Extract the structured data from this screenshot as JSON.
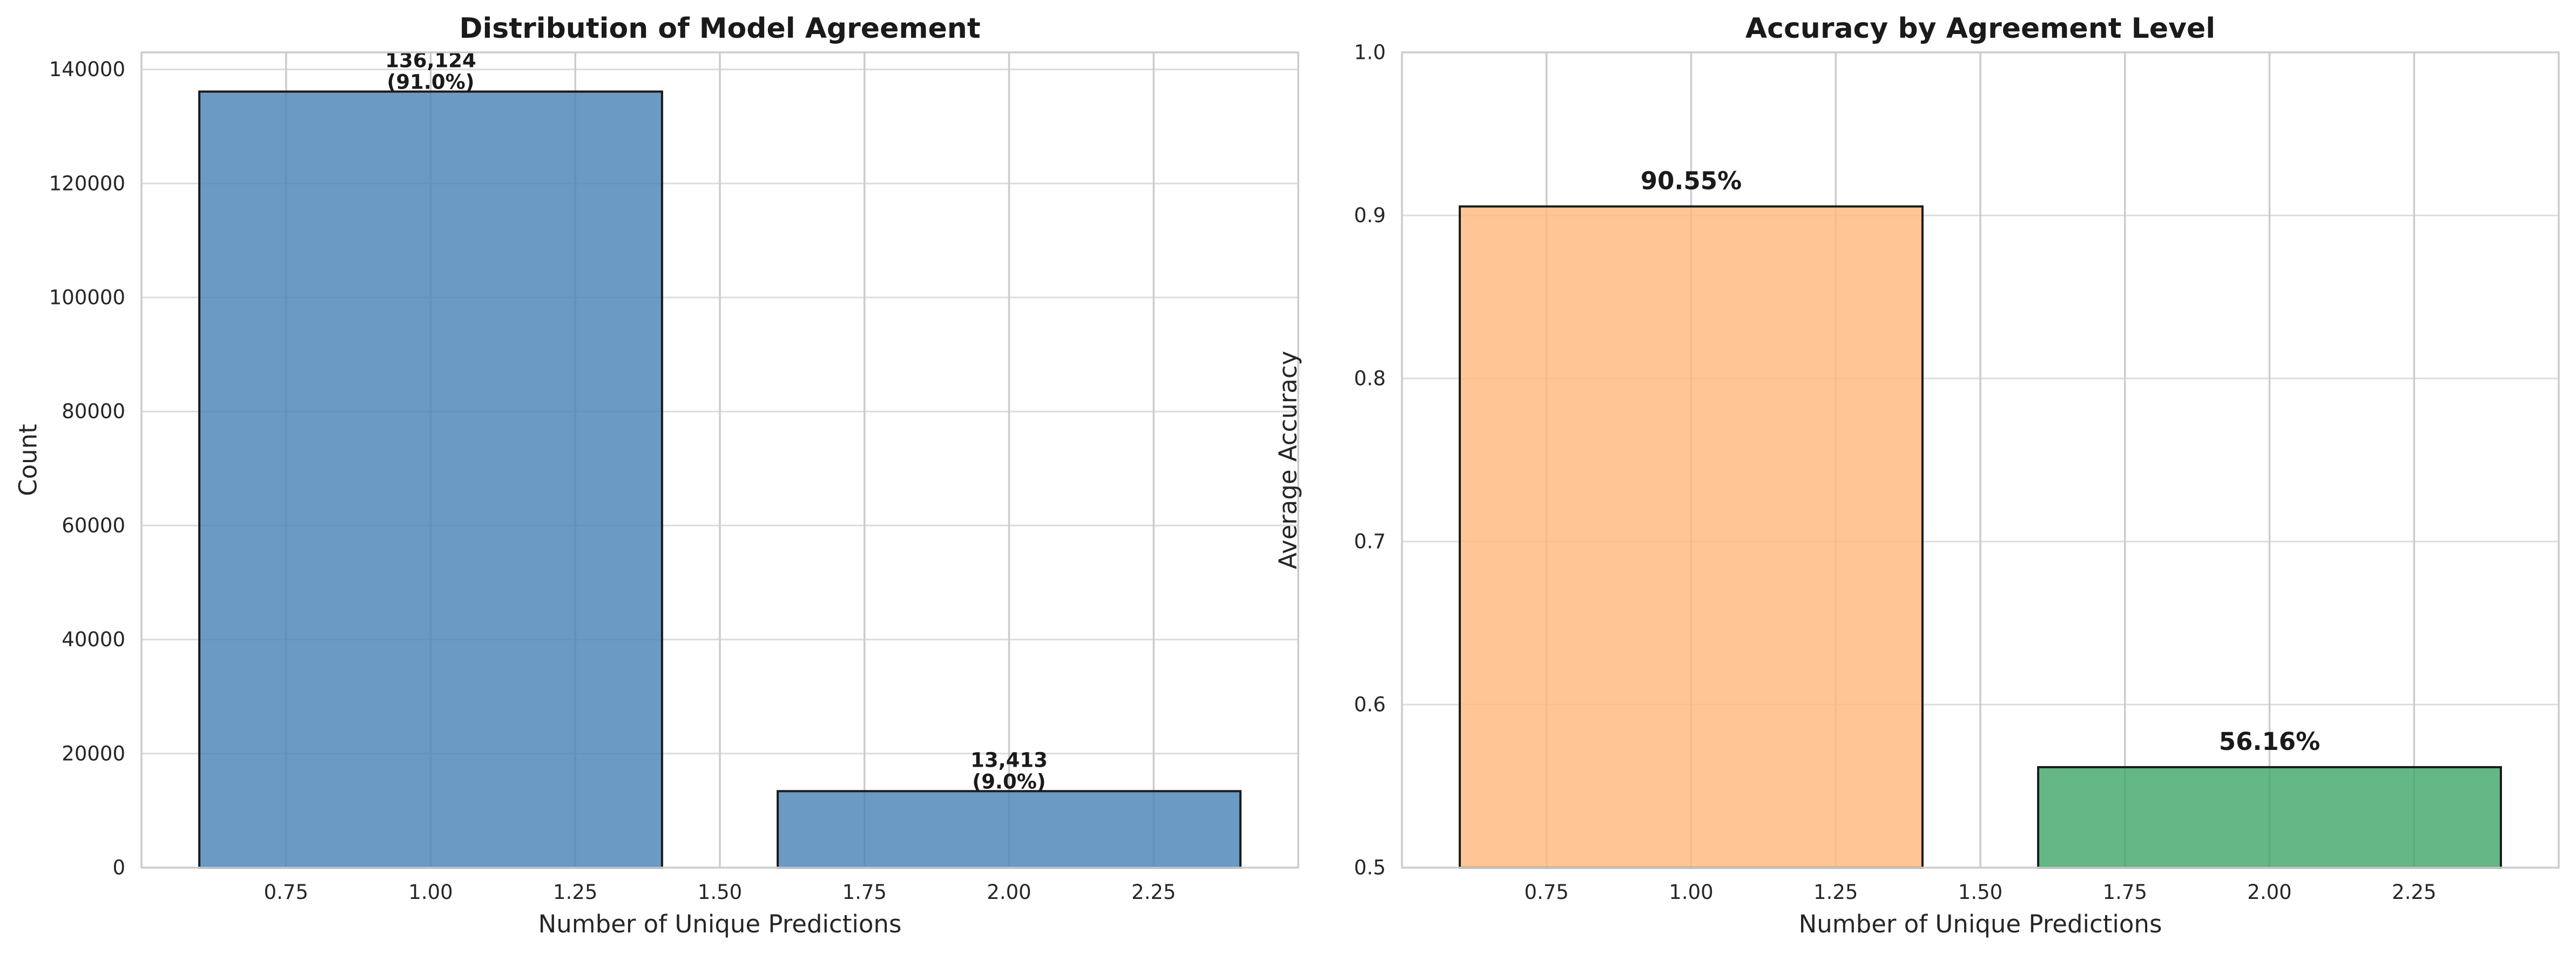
{
  "chart_data": [
    {
      "type": "bar",
      "title": "Distribution of Model Agreement",
      "xlabel": "Number of Unique Predictions",
      "ylabel": "Count",
      "xlim": [
        0.5,
        2.5
      ],
      "ylim": [
        0,
        143000
      ],
      "xticks": [
        0.75,
        1.0,
        1.25,
        1.5,
        1.75,
        2.0,
        2.25
      ],
      "xtick_labels": [
        "0.75",
        "1.00",
        "1.25",
        "1.50",
        "1.75",
        "2.00",
        "2.25"
      ],
      "yticks": [
        0,
        20000,
        40000,
        60000,
        80000,
        100000,
        120000,
        140000
      ],
      "ytick_labels": [
        "0",
        "20000",
        "40000",
        "60000",
        "80000",
        "100000",
        "120000",
        "140000"
      ],
      "bar_width": 0.8,
      "grid": true,
      "bars": [
        {
          "x": 1,
          "value": 136124,
          "label_line1": "136,124",
          "label_line2": "(91.0%)",
          "color": "#4a84b8"
        },
        {
          "x": 2,
          "value": 13413,
          "label_line1": "13,413",
          "label_line2": "(9.0%)",
          "color": "#4a84b8"
        }
      ]
    },
    {
      "type": "bar",
      "title": "Accuracy by Agreement Level",
      "xlabel": "Number of Unique Predictions",
      "ylabel": "Average Accuracy",
      "xlim": [
        0.5,
        2.5
      ],
      "ylim": [
        0.5,
        1.0
      ],
      "xticks": [
        0.75,
        1.0,
        1.25,
        1.5,
        1.75,
        2.0,
        2.25
      ],
      "xtick_labels": [
        "0.75",
        "1.00",
        "1.25",
        "1.50",
        "1.75",
        "2.00",
        "2.25"
      ],
      "yticks": [
        0.5,
        0.6,
        0.7,
        0.8,
        0.9,
        1.0
      ],
      "ytick_labels": [
        "0.5",
        "0.6",
        "0.7",
        "0.8",
        "0.9",
        "1.0"
      ],
      "bar_width": 0.8,
      "grid": true,
      "bars": [
        {
          "x": 1,
          "value": 0.9055,
          "label_line1": "90.55%",
          "color": "#fdb97d"
        },
        {
          "x": 2,
          "value": 0.5616,
          "label_line1": "56.16%",
          "color": "#41a86a"
        }
      ]
    }
  ]
}
